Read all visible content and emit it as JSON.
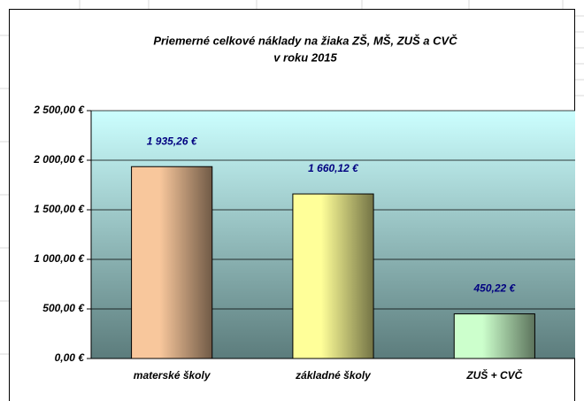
{
  "chart_data": {
    "type": "bar",
    "title": "Priemerné celkové náklady na žiaka ZŠ, MŠ, ZUŠ a CVČ",
    "subtitle": "v roku 2015",
    "categories": [
      "materské školy",
      "základné školy",
      "ZUŠ + CVČ"
    ],
    "values": [
      1935.26,
      1660.12,
      450.22
    ],
    "value_labels": [
      "1 935,26 €",
      "1 660,12 €",
      "450,22 €"
    ],
    "colors": [
      "#f8c79c",
      "#ffff99",
      "#ccffcc"
    ],
    "ylim": [
      0,
      2500
    ],
    "yticks": [
      {
        "value": 0,
        "label": "0,00 €"
      },
      {
        "value": 500,
        "label": "500,00 €"
      },
      {
        "value": 1000,
        "label": "1 000,00 €"
      },
      {
        "value": 1500,
        "label": "1 500,00 €"
      },
      {
        "value": 2000,
        "label": "2 000,00 €"
      },
      {
        "value": 2500,
        "label": "2 500,00 €"
      }
    ],
    "grid": true
  }
}
